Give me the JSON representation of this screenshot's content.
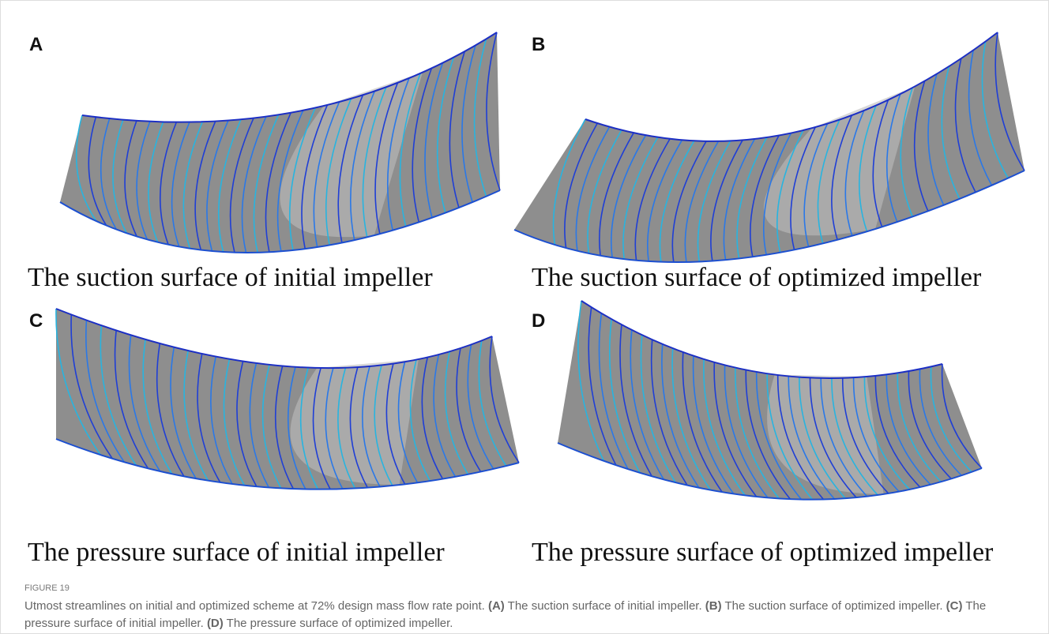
{
  "panels": [
    {
      "letter": "A",
      "caption": "The suction surface of initial impeller"
    },
    {
      "letter": "B",
      "caption": "The suction surface of optimized impeller"
    },
    {
      "letter": "C",
      "caption": "The pressure surface of initial impeller"
    },
    {
      "letter": "D",
      "caption": "The pressure surface of optimized impeller"
    }
  ],
  "figure": {
    "label": "FIGURE 19",
    "caption": [
      {
        "text": "Utmost streamlines on initial and optimized scheme at 72% design mass flow rate point. ",
        "bold": false
      },
      {
        "text": "(A)",
        "bold": true
      },
      {
        "text": " The suction surface of initial impeller. ",
        "bold": false
      },
      {
        "text": "(B)",
        "bold": true
      },
      {
        "text": " The suction surface of optimized impeller. ",
        "bold": false
      },
      {
        "text": "(C)",
        "bold": true
      },
      {
        "text": " The pressure surface of initial impeller. ",
        "bold": false
      },
      {
        "text": "(D)",
        "bold": true
      },
      {
        "text": " The pressure surface of optimized impeller.",
        "bold": false
      }
    ]
  }
}
